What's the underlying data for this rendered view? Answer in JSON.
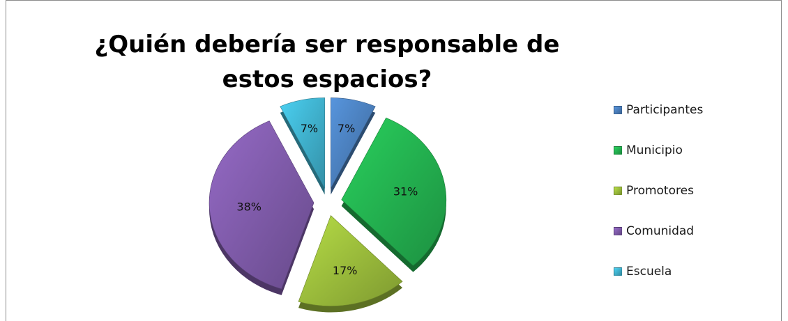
{
  "chart_data": {
    "type": "pie",
    "title": "¿Quién debería ser responsable de estos espacios?",
    "categories": [
      "Participantes",
      "Municipio",
      "Promotores",
      "Comunidad",
      "Escuela"
    ],
    "values": [
      7,
      31,
      17,
      38,
      7
    ],
    "data_labels": [
      "7%",
      "31%",
      "17%",
      "38%",
      "7%"
    ],
    "colors": [
      "#4a7ebb",
      "#23b04f",
      "#9abb3b",
      "#7e5aa8",
      "#3fb0cc"
    ],
    "legend_position": "right",
    "exploded": true
  }
}
